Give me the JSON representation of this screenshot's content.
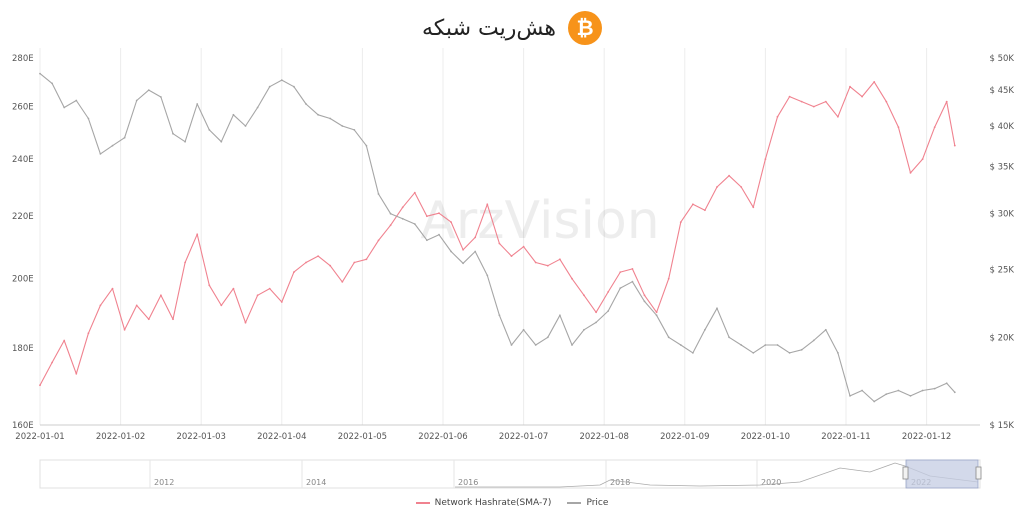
{
  "title": "هش‌ریت شبکه",
  "icon": "bitcoin-icon",
  "icon_glyph": "₿",
  "watermark": "ArzVision",
  "colors": {
    "hashrate": "#f0828f",
    "price": "#a6a6a6",
    "bitcoin": "#f7931a",
    "navigator_selection": "#c4cce3"
  },
  "legend": [
    {
      "label": "Network Hashrate(SMA-7)",
      "color": "#f0828f"
    },
    {
      "label": "Price",
      "color": "#a6a6a6"
    }
  ],
  "navigator": {
    "labels": [
      "2012",
      "2014",
      "2016",
      "2018",
      "2020",
      "2022"
    ]
  },
  "chart_data": {
    "type": "line",
    "x_tick_labels": [
      "2022-01-01",
      "2022-01-02",
      "2022-01-03",
      "2022-01-04",
      "2022-01-05",
      "2022-01-06",
      "2022-01-07",
      "2022-01-08",
      "2022-01-09",
      "2022-01-10",
      "2022-01-11",
      "2022-01-12"
    ],
    "y_left": {
      "ticks": [
        "160E",
        "180E",
        "200E",
        "220E",
        "240E",
        "260E",
        "280E"
      ],
      "range": [
        160,
        280
      ],
      "scale": "log"
    },
    "y_right": {
      "ticks": [
        "$ 15K",
        "$ 20K",
        "$ 25K",
        "$ 30K",
        "$ 35K",
        "$ 40K",
        "$ 45K",
        "$ 50K"
      ],
      "range": [
        15000,
        50000
      ],
      "scale": "log"
    },
    "grid": "vertical",
    "series": [
      {
        "name": "Network Hashrate(SMA-7)",
        "axis": "left",
        "x_months": [
          0,
          0.15,
          0.3,
          0.45,
          0.6,
          0.75,
          0.9,
          1.05,
          1.2,
          1.35,
          1.5,
          1.65,
          1.8,
          1.95,
          2.1,
          2.25,
          2.4,
          2.55,
          2.7,
          2.85,
          3.0,
          3.15,
          3.3,
          3.45,
          3.6,
          3.75,
          3.9,
          4.05,
          4.2,
          4.35,
          4.5,
          4.65,
          4.8,
          4.95,
          5.1,
          5.25,
          5.4,
          5.55,
          5.7,
          5.85,
          6.0,
          6.15,
          6.3,
          6.45,
          6.6,
          6.75,
          6.9,
          7.05,
          7.2,
          7.35,
          7.5,
          7.65,
          7.8,
          7.95,
          8.1,
          8.25,
          8.4,
          8.55,
          8.7,
          8.85,
          9.0,
          9.15,
          9.3,
          9.45,
          9.6,
          9.75,
          9.9,
          10.05,
          10.2,
          10.35,
          10.5,
          10.65,
          10.8,
          10.95,
          11.1,
          11.25,
          11.35
        ],
        "values": [
          170,
          176,
          182,
          173,
          184,
          192,
          197,
          185,
          192,
          188,
          195,
          188,
          205,
          214,
          198,
          192,
          197,
          187,
          195,
          197,
          193,
          202,
          205,
          207,
          204,
          199,
          205,
          206,
          212,
          217,
          223,
          228,
          220,
          221,
          218,
          209,
          213,
          224,
          211,
          207,
          210,
          205,
          204,
          206,
          200,
          195,
          190,
          196,
          202,
          203,
          195,
          190,
          200,
          218,
          224,
          222,
          230,
          234,
          230,
          223,
          240,
          256,
          264,
          262,
          260,
          262,
          256,
          268,
          264,
          270,
          262,
          252,
          235,
          240,
          252,
          262,
          245
        ]
      },
      {
        "name": "Price",
        "axis": "right",
        "x_months": [
          0,
          0.15,
          0.3,
          0.45,
          0.6,
          0.75,
          0.9,
          1.05,
          1.2,
          1.35,
          1.5,
          1.65,
          1.8,
          1.95,
          2.1,
          2.25,
          2.4,
          2.55,
          2.7,
          2.85,
          3.0,
          3.15,
          3.3,
          3.45,
          3.6,
          3.75,
          3.9,
          4.05,
          4.2,
          4.35,
          4.5,
          4.65,
          4.8,
          4.95,
          5.1,
          5.25,
          5.4,
          5.55,
          5.7,
          5.85,
          6.0,
          6.15,
          6.3,
          6.45,
          6.6,
          6.75,
          6.9,
          7.05,
          7.2,
          7.35,
          7.5,
          7.65,
          7.8,
          7.95,
          8.1,
          8.25,
          8.4,
          8.55,
          8.7,
          8.85,
          9.0,
          9.15,
          9.3,
          9.45,
          9.6,
          9.75,
          9.9,
          10.05,
          10.2,
          10.35,
          10.5,
          10.65,
          10.8,
          10.95,
          11.1,
          11.25,
          11.35
        ],
        "values": [
          47500,
          46000,
          42500,
          43500,
          41000,
          36500,
          37500,
          38500,
          43500,
          45000,
          44000,
          39000,
          38000,
          43000,
          39500,
          38000,
          41500,
          40000,
          42500,
          45500,
          46500,
          45500,
          43000,
          41500,
          41000,
          40000,
          39500,
          37500,
          32000,
          30000,
          29500,
          29000,
          27500,
          28000,
          26500,
          25500,
          26500,
          24500,
          21500,
          19500,
          20500,
          19500,
          20000,
          21500,
          19500,
          20500,
          21000,
          21800,
          23500,
          24000,
          22500,
          21500,
          20000,
          19500,
          19000,
          20500,
          22000,
          20000,
          19500,
          19000,
          19500,
          19500,
          19000,
          19200,
          19800,
          20500,
          19000,
          16500,
          16800,
          16200,
          16600,
          16800,
          16500,
          16800,
          16900,
          17200,
          16700
        ]
      }
    ]
  }
}
